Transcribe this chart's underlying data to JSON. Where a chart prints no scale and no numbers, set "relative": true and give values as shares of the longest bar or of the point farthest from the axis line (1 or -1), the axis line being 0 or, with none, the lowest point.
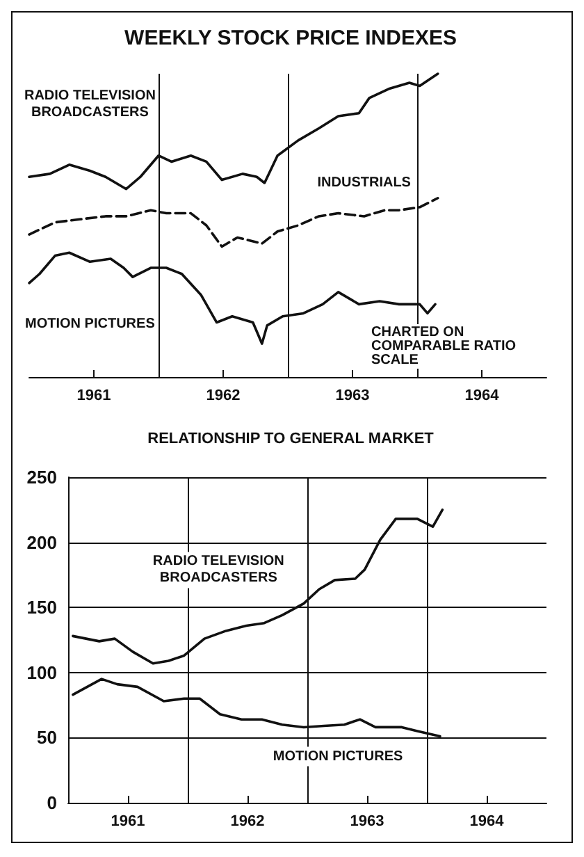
{
  "chart_data": [
    {
      "type": "line",
      "title": "WEEKLY STOCK PRICE INDEXES",
      "relative": true,
      "xlim": [
        1961,
        1965
      ],
      "xticks": [
        {
          "value": 1961.5,
          "label": "1961"
        },
        {
          "value": 1962.5,
          "label": "1962"
        },
        {
          "value": 1963.5,
          "label": "1963"
        },
        {
          "value": 1964.5,
          "label": "1964"
        }
      ],
      "ref_lines": [
        {
          "axis": "x",
          "value": 1962
        },
        {
          "axis": "x",
          "value": 1963
        },
        {
          "axis": "x",
          "value": 1964
        }
      ],
      "annotations": [
        "CHARTED ON COMPARABLE RATIO SCALE"
      ],
      "series": [
        {
          "name": "RADIO TELEVISION BROADCASTERS",
          "color": "#111111",
          "line_style": "solid",
          "x": [
            1961,
            1961.16,
            1961.31,
            1961.47,
            1961.59,
            1961.75,
            1961.86,
            1962,
            1962.1,
            1962.25,
            1962.37,
            1962.49,
            1962.65,
            1962.76,
            1962.82,
            1962.92,
            1963.08,
            1963.24,
            1963.39,
            1963.55,
            1963.63,
            1963.78,
            1963.94,
            1964.02,
            1964.16
          ],
          "values": [
            0.66,
            0.67,
            0.7,
            0.68,
            0.66,
            0.62,
            0.66,
            0.73,
            0.71,
            0.73,
            0.71,
            0.65,
            0.67,
            0.66,
            0.64,
            0.73,
            0.78,
            0.82,
            0.86,
            0.87,
            0.92,
            0.95,
            0.97,
            0.96,
            1
          ]
        },
        {
          "name": "INDUSTRIALS",
          "color": "#111111",
          "line_style": "dashed",
          "x": [
            1961,
            1961.2,
            1961.39,
            1961.59,
            1961.75,
            1961.94,
            1962.06,
            1962.25,
            1962.37,
            1962.49,
            1962.61,
            1962.8,
            1962.92,
            1963.08,
            1963.24,
            1963.39,
            1963.59,
            1963.75,
            1963.86,
            1964.02,
            1964.16
          ],
          "values": [
            0.47,
            0.51,
            0.52,
            0.53,
            0.53,
            0.55,
            0.54,
            0.54,
            0.5,
            0.43,
            0.46,
            0.44,
            0.48,
            0.5,
            0.53,
            0.54,
            0.53,
            0.55,
            0.55,
            0.56,
            0.59
          ]
        },
        {
          "name": "MOTION PICTURES",
          "color": "#111111",
          "line_style": "solid",
          "x": [
            1961,
            1961.08,
            1961.2,
            1961.31,
            1961.47,
            1961.63,
            1961.73,
            1961.8,
            1961.94,
            1962.06,
            1962.18,
            1962.33,
            1962.45,
            1962.57,
            1962.73,
            1962.8,
            1962.84,
            1962.96,
            1963.12,
            1963.27,
            1963.39,
            1963.55,
            1963.71,
            1963.86,
            1964.02,
            1964.08,
            1964.14
          ],
          "values": [
            0.31,
            0.34,
            0.4,
            0.41,
            0.38,
            0.39,
            0.36,
            0.33,
            0.36,
            0.36,
            0.34,
            0.27,
            0.18,
            0.2,
            0.18,
            0.11,
            0.17,
            0.2,
            0.21,
            0.24,
            0.28,
            0.24,
            0.25,
            0.24,
            0.24,
            0.21,
            0.24
          ]
        }
      ]
    },
    {
      "type": "line",
      "title": "RELATIONSHIP TO GENERAL MARKET",
      "xlim": [
        1961,
        1965
      ],
      "xticks": [
        {
          "value": 1961.5,
          "label": "1961"
        },
        {
          "value": 1962.5,
          "label": "1962"
        },
        {
          "value": 1963.5,
          "label": "1963"
        },
        {
          "value": 1964.5,
          "label": "1964"
        }
      ],
      "ylim": [
        0,
        250
      ],
      "yticks": [
        0,
        50,
        100,
        150,
        200,
        250
      ],
      "grid": "y",
      "ref_lines": [
        {
          "axis": "x",
          "value": 1962
        },
        {
          "axis": "x",
          "value": 1963
        },
        {
          "axis": "x",
          "value": 1964
        }
      ],
      "series": [
        {
          "name": "RADIO TELEVISION BROADCASTERS",
          "color": "#111111",
          "line_style": "solid",
          "x": [
            1961.04,
            1961.26,
            1961.39,
            1961.54,
            1961.71,
            1961.84,
            1961.97,
            1962.14,
            1962.32,
            1962.49,
            1962.64,
            1962.79,
            1962.97,
            1963.1,
            1963.23,
            1963.4,
            1963.48,
            1963.61,
            1963.74,
            1963.92,
            1964.05,
            1964.13
          ],
          "values": [
            128,
            124,
            126,
            116,
            107,
            109,
            113,
            126,
            132,
            136,
            138,
            144,
            153,
            164,
            171,
            172,
            179,
            202,
            218,
            218,
            212,
            225
          ]
        },
        {
          "name": "MOTION PICTURES",
          "color": "#111111",
          "line_style": "solid",
          "x": [
            1961.04,
            1961.28,
            1961.41,
            1961.58,
            1961.8,
            1961.97,
            1962.1,
            1962.27,
            1962.45,
            1962.62,
            1962.79,
            1962.97,
            1963.14,
            1963.31,
            1963.44,
            1963.57,
            1963.79,
            1963.92,
            1964.11
          ],
          "values": [
            83,
            95,
            91,
            89,
            78,
            80,
            80,
            68,
            64,
            64,
            60,
            58,
            59,
            60,
            64,
            58,
            58,
            55,
            51
          ]
        }
      ]
    }
  ]
}
